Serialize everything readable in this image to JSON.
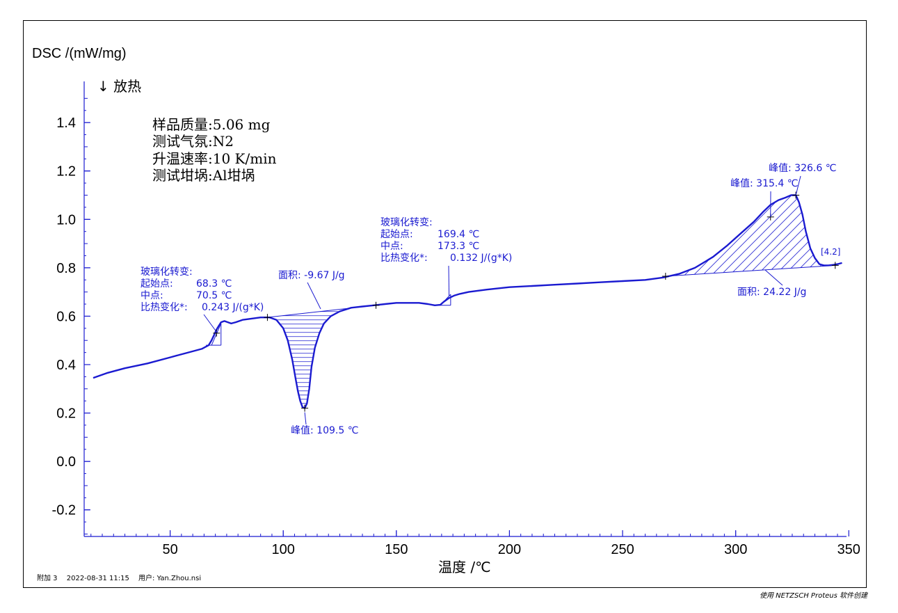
{
  "chart_data": {
    "type": "line",
    "ylabel": "DSC /(mW/mg)",
    "exo_direction": "↓ 放热",
    "xlabel": "温度 /℃",
    "xlim": [
      12,
      349
    ],
    "ylim": [
      -0.31,
      1.57
    ],
    "xticks": [
      50,
      100,
      150,
      200,
      250,
      300,
      350
    ],
    "yticks": [
      -0.2,
      0.0,
      0.2,
      0.4,
      0.6,
      0.8,
      1.0,
      1.2,
      1.4
    ],
    "ytick_labels": [
      "-0.2",
      "0.0",
      "0.2",
      "0.4",
      "0.6",
      "0.8",
      "1.0",
      "1.2",
      "1.4"
    ],
    "xtick_labels": [
      "50",
      "100",
      "150",
      "200",
      "250",
      "300",
      "350"
    ],
    "grid": false,
    "series": [
      {
        "color": "#1a1ad0",
        "x": [
          16,
          22,
          30,
          40,
          50,
          58,
          64,
          67,
          68.3,
          69.3,
          70.5,
          71.5,
          72.5,
          74,
          75.5,
          77,
          79,
          82,
          86,
          90,
          94,
          97,
          100,
          102,
          104,
          105.5,
          106.5,
          107.5,
          108.5,
          109.5,
          110.5,
          111.5,
          112.5,
          114,
          116,
          118,
          121,
          125,
          130,
          135,
          140,
          145,
          150,
          155,
          160,
          164,
          167,
          169.4,
          171,
          173.3,
          175.5,
          178,
          182,
          190,
          200,
          210,
          220,
          230,
          240,
          250,
          260,
          268,
          275,
          282,
          290,
          296,
          302,
          308,
          312,
          315.4,
          319,
          322,
          324.5,
          326.6,
          328,
          329.5,
          331,
          333,
          335,
          337,
          339,
          341,
          343,
          345,
          347
        ],
        "y": [
          0.345,
          0.365,
          0.385,
          0.405,
          0.43,
          0.45,
          0.465,
          0.48,
          0.5,
          0.52,
          0.545,
          0.56,
          0.575,
          0.58,
          0.575,
          0.57,
          0.575,
          0.585,
          0.59,
          0.595,
          0.595,
          0.585,
          0.55,
          0.5,
          0.42,
          0.34,
          0.29,
          0.25,
          0.225,
          0.22,
          0.24,
          0.3,
          0.39,
          0.47,
          0.53,
          0.57,
          0.6,
          0.62,
          0.635,
          0.64,
          0.645,
          0.65,
          0.655,
          0.655,
          0.655,
          0.65,
          0.645,
          0.647,
          0.66,
          0.675,
          0.685,
          0.692,
          0.7,
          0.71,
          0.72,
          0.725,
          0.73,
          0.735,
          0.74,
          0.745,
          0.75,
          0.76,
          0.775,
          0.8,
          0.845,
          0.89,
          0.94,
          0.99,
          1.03,
          1.06,
          1.08,
          1.09,
          1.1,
          1.1,
          1.07,
          1.02,
          0.95,
          0.88,
          0.84,
          0.815,
          0.81,
          0.81,
          0.812,
          0.815,
          0.82
        ]
      }
    ],
    "peak_regions": [
      {
        "hatch": "horizontal",
        "baseline": [
          [
            93,
            0.595
          ],
          [
            141,
            0.645
          ]
        ],
        "x_range": [
          93,
          141
        ]
      },
      {
        "hatch": "diagonal",
        "baseline": [
          [
            269,
            0.765
          ],
          [
            344,
            0.81
          ]
        ],
        "x_range": [
          269,
          344
        ]
      }
    ],
    "markers": [
      {
        "x": 70.5,
        "y": 0.53
      },
      {
        "x": 93,
        "y": 0.595
      },
      {
        "x": 109.5,
        "y": 0.22
      },
      {
        "x": 141,
        "y": 0.645
      },
      {
        "x": 269,
        "y": 0.765
      },
      {
        "x": 315.4,
        "y": 1.01
      },
      {
        "x": 326.6,
        "y": 1.1
      },
      {
        "x": 344,
        "y": 0.81
      }
    ],
    "glass_transitions": [
      {
        "onset": 68.3,
        "end": 72.5,
        "y_low": 0.48,
        "y_high": 0.57
      },
      {
        "onset": 169.4,
        "end": 174,
        "y_low": 0.645,
        "y_high": 0.69
      }
    ],
    "annotations": {
      "tg1": {
        "title": "玻璃化转变:",
        "onset_label": "起始点:",
        "onset_value": "68.3 ℃",
        "mid_label": "中点:",
        "mid_value": "70.5 ℃",
        "dcp_label": "比热变化*:",
        "dcp_value": "0.243 J/(g*K)"
      },
      "tg2": {
        "title": "玻璃化转变:",
        "onset_label": "起始点:",
        "onset_value": "169.4 ℃",
        "mid_label": "中点:",
        "mid_value": "173.3 ℃",
        "dcp_label": "比热变化*:",
        "dcp_value": "0.132 J/(g*K)"
      },
      "area1": "面积: -9.67 J/g",
      "peak1": "峰值: 109.5 ℃",
      "area2": "面积: 24.22 J/g",
      "peak2": "峰值: 315.4 ℃",
      "peak3": "峰值: 326.6 ℃",
      "curve_id": "[4.2]"
    }
  },
  "conditions": {
    "mass": "样品质量:5.06 mg",
    "atmosphere": "测试气氛:N2",
    "rate": "升温速率:10 K/min",
    "crucible": "测试坩埚:Al坩埚"
  },
  "footer": {
    "attachment": "附加 3",
    "datetime": "2022-08-31 11:15",
    "user": "用户: Yan.Zhou.nsi",
    "software": "使用 NETZSCH Proteus 软件创建"
  }
}
